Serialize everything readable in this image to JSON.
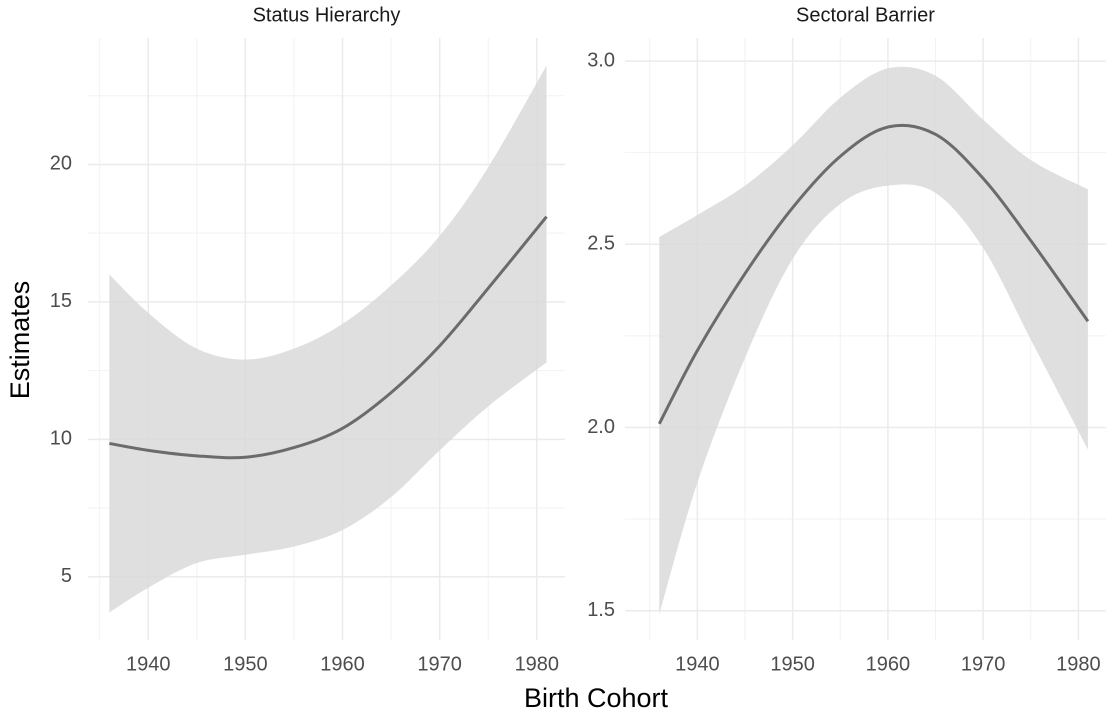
{
  "xlabel": "Birth Cohort",
  "ylabel": "Estimates",
  "chart_data": [
    {
      "type": "line",
      "title": "Status Hierarchy",
      "x": [
        1936,
        1940,
        1945,
        1950,
        1955,
        1960,
        1965,
        1970,
        1975,
        1981
      ],
      "values": [
        9.85,
        9.6,
        9.4,
        9.35,
        9.7,
        10.4,
        11.7,
        13.4,
        15.5,
        18.1
      ],
      "upper": [
        16.0,
        14.6,
        13.3,
        12.9,
        13.3,
        14.2,
        15.6,
        17.4,
        19.9,
        23.6
      ],
      "lower": [
        3.7,
        4.6,
        5.5,
        5.8,
        6.1,
        6.7,
        7.9,
        9.6,
        11.2,
        12.8
      ],
      "color": "#6b6b6b",
      "band_color": "#d9d9d9",
      "xlim": [
        1933.8,
        1982.9
      ],
      "xticks": [
        1940,
        1950,
        1960,
        1970,
        1980
      ],
      "ylim": [
        2.7,
        24.6
      ],
      "yticks": [
        5,
        10,
        15,
        20
      ],
      "grid": true,
      "minor_grid": true
    },
    {
      "type": "line",
      "title": "Sectoral Barrier",
      "x": [
        1936,
        1940,
        1945,
        1950,
        1955,
        1960,
        1965,
        1970,
        1975,
        1981
      ],
      "values": [
        2.01,
        2.21,
        2.42,
        2.6,
        2.74,
        2.82,
        2.8,
        2.68,
        2.51,
        2.29
      ],
      "upper": [
        2.52,
        2.58,
        2.66,
        2.77,
        2.9,
        2.98,
        2.96,
        2.84,
        2.73,
        2.65
      ],
      "lower": [
        1.49,
        1.85,
        2.19,
        2.46,
        2.61,
        2.66,
        2.64,
        2.49,
        2.24,
        1.94
      ],
      "color": "#6b6b6b",
      "band_color": "#d9d9d9",
      "xlim": [
        1932.4,
        1982.9
      ],
      "xticks": [
        1940,
        1950,
        1960,
        1970,
        1980
      ],
      "ylim": [
        1.42,
        3.063
      ],
      "yticks": [
        {
          "value": 1.5,
          "label": "1.5"
        },
        {
          "value": 2,
          "label": "2.0"
        },
        {
          "value": 2.5,
          "label": "2.5"
        },
        {
          "value": 3,
          "label": "3.0"
        }
      ],
      "grid": true,
      "minor_grid": true
    }
  ]
}
